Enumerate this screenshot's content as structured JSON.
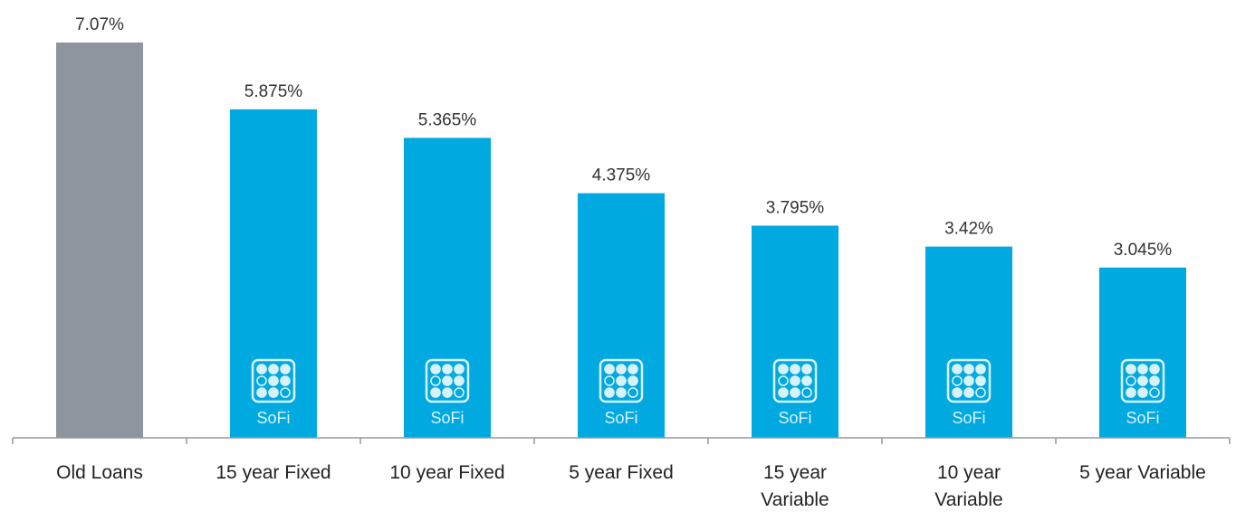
{
  "chart_data": {
    "type": "bar",
    "categories": [
      [
        "Old Loans"
      ],
      [
        "15 year Fixed"
      ],
      [
        "10 year Fixed"
      ],
      [
        "5 year Fixed"
      ],
      [
        "15 year",
        "Variable"
      ],
      [
        "10 year",
        "Variable"
      ],
      [
        "5 year Variable"
      ]
    ],
    "values": [
      7.07,
      5.875,
      5.365,
      4.375,
      3.795,
      3.42,
      3.045
    ],
    "value_labels": [
      "7.07%",
      "5.875%",
      "5.365%",
      "4.375%",
      "3.795%",
      "3.42%",
      "3.045%"
    ],
    "bar_colors": [
      "#8e959f",
      "#00a9e0",
      "#00a9e0",
      "#00a9e0",
      "#00a9e0",
      "#00a9e0",
      "#00a9e0"
    ],
    "logo_on_bars": [
      false,
      true,
      true,
      true,
      true,
      true,
      true
    ],
    "logo_text": "SoFi",
    "ylim": [
      0,
      7.07
    ],
    "grid": false,
    "legend": "none"
  },
  "colors": {
    "axis": "#999999",
    "sofi_blue": "#00a9e0",
    "old_loans_gray": "#8e959f"
  }
}
